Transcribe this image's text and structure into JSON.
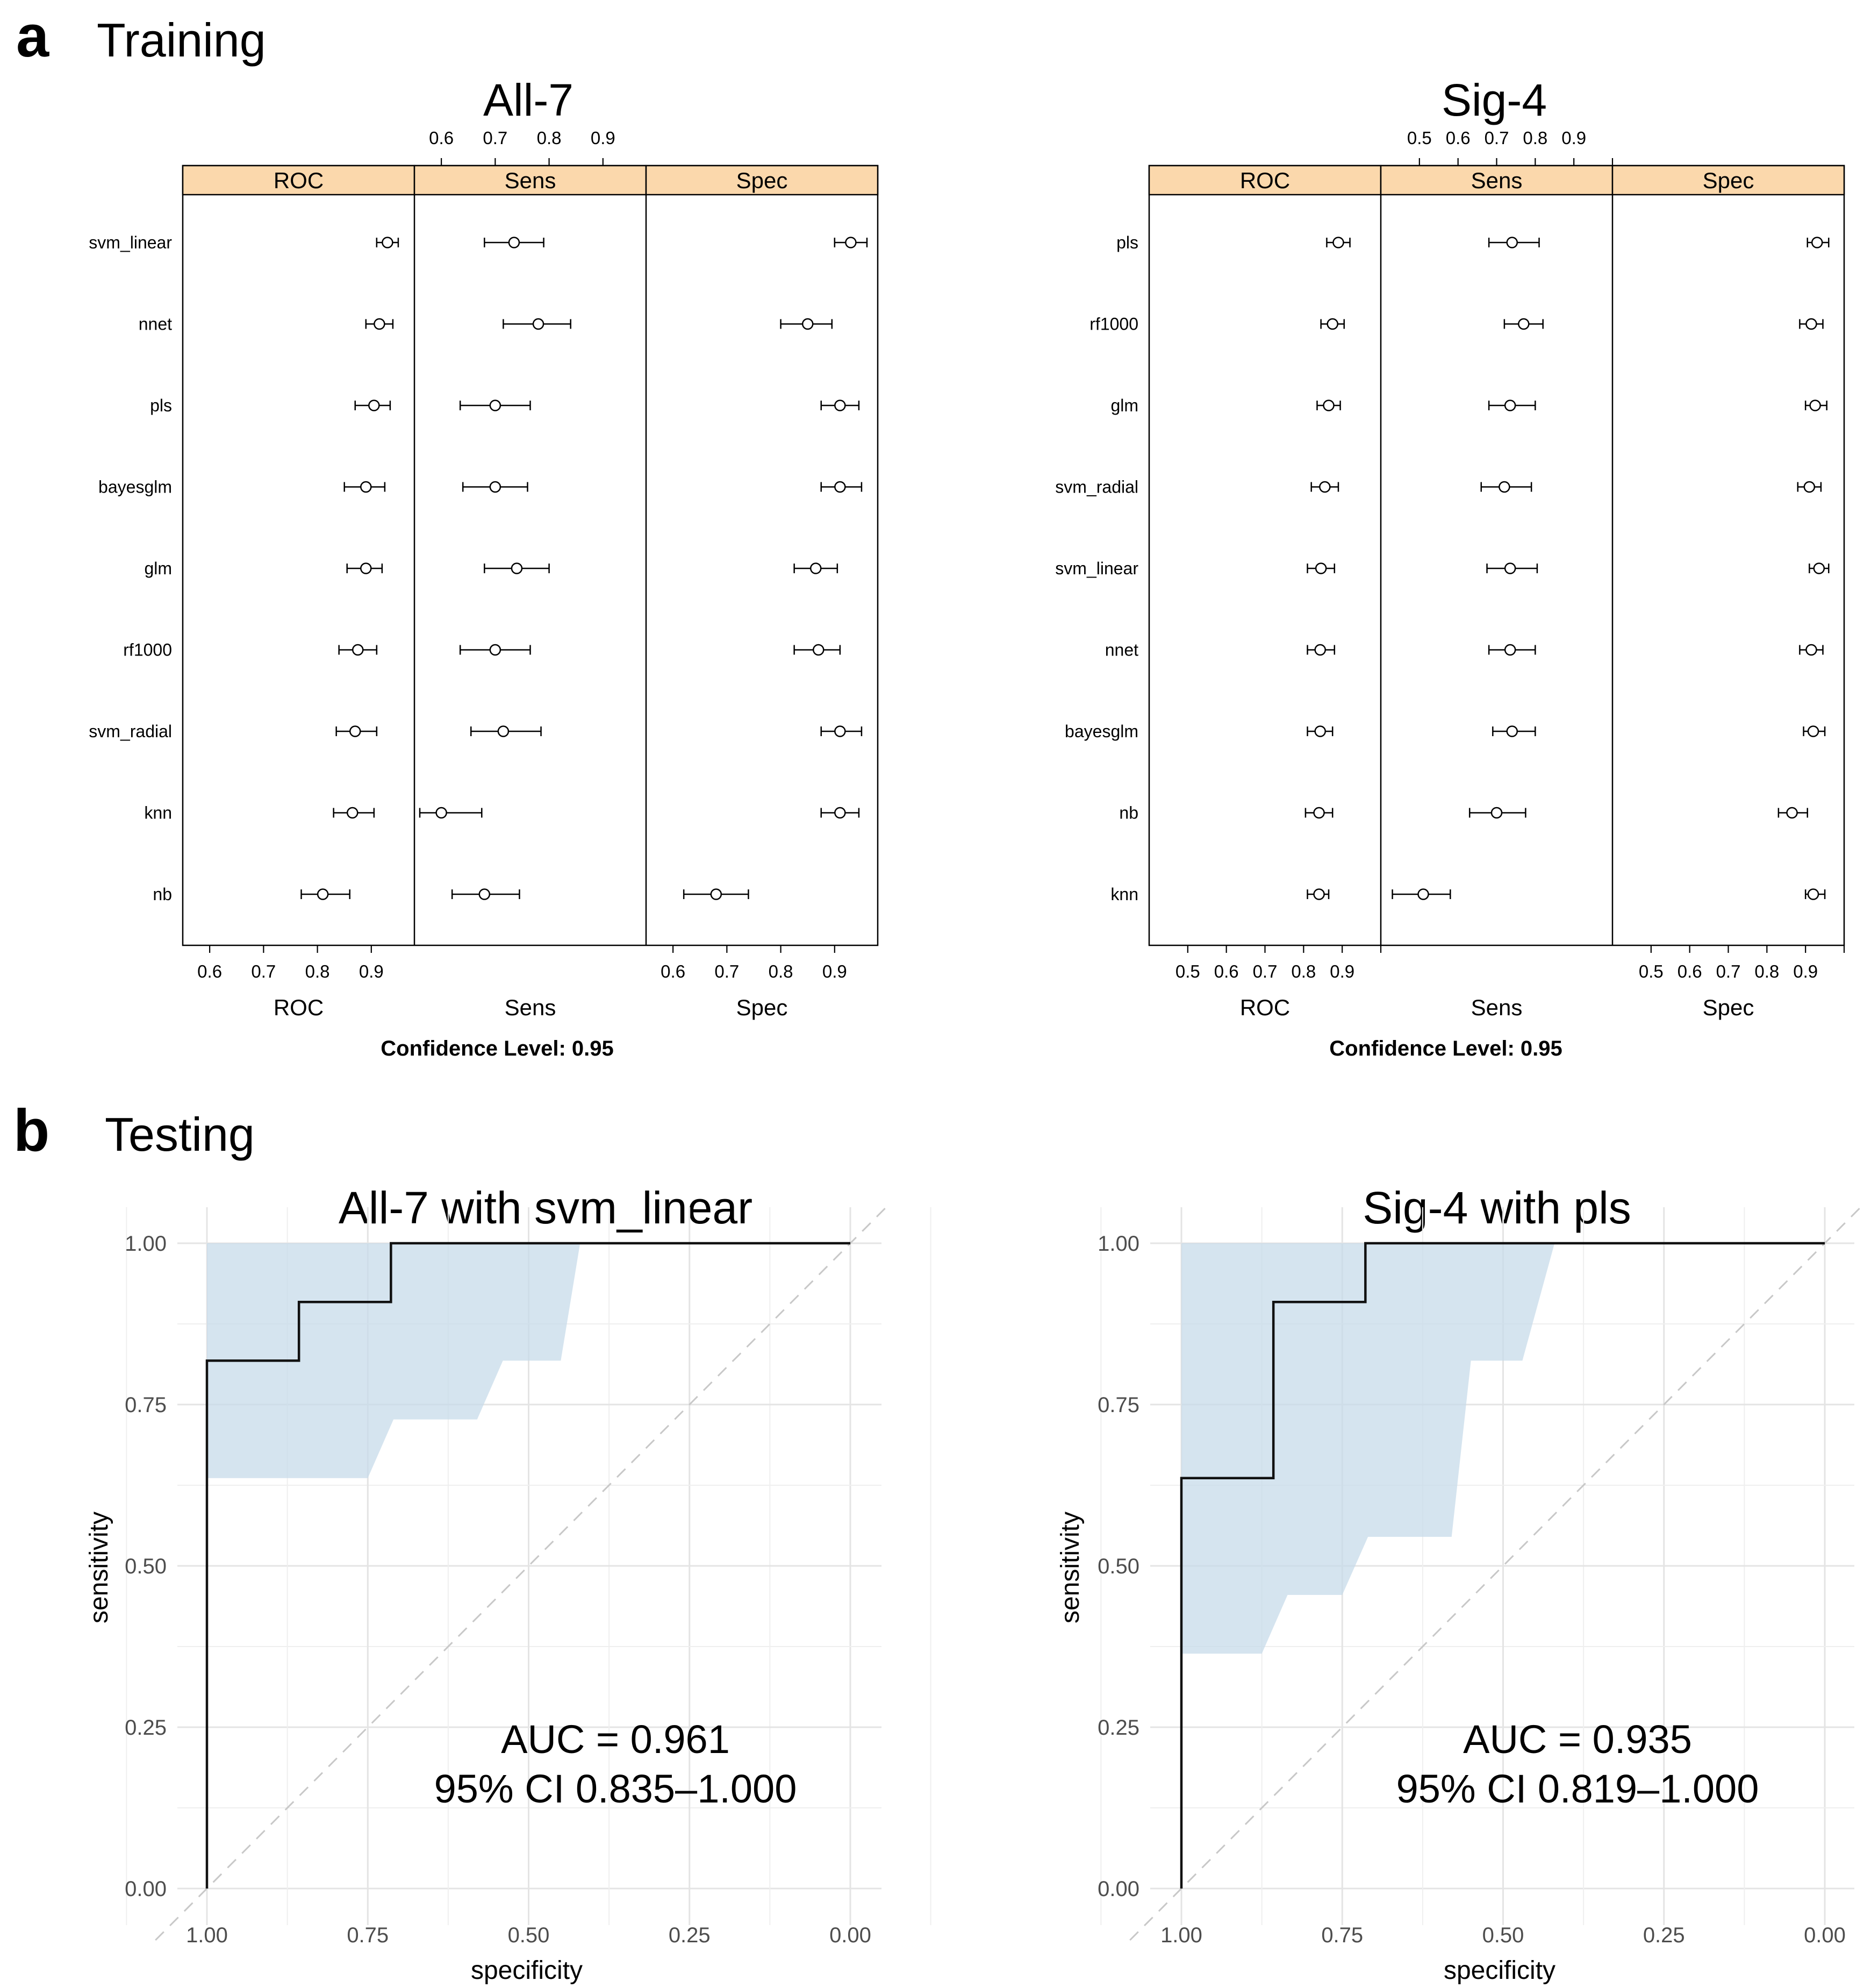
{
  "panel_a": {
    "letter": "a",
    "title": "Training",
    "confidence_label": "Confidence Level: 0.95",
    "strip_color": "#fbd8ac"
  },
  "panel_b": {
    "letter": "b",
    "title": "Testing",
    "ci_fill_color": "#c7dbea"
  },
  "chart_data": [
    {
      "type": "dotplot",
      "title": "All-7",
      "panels": [
        "ROC",
        "Sens",
        "Spec"
      ],
      "xlabels": [
        "ROC",
        "Sens",
        "Spec"
      ],
      "top_ticks": [
        "0.6",
        "0.7",
        "0.8",
        "0.9"
      ],
      "bottom_ticks": [
        "0.6",
        "0.7",
        "0.8",
        "0.9"
      ],
      "xlim": [
        0.55,
        0.98
      ],
      "models": [
        "svm_linear",
        "nnet",
        "pls",
        "bayesglm",
        "glm",
        "rf1000",
        "svm_radial",
        "knn",
        "nb"
      ],
      "values": {
        "ROC": [
          [
            0.91,
            0.93,
            0.95
          ],
          [
            0.89,
            0.915,
            0.94
          ],
          [
            0.87,
            0.905,
            0.935
          ],
          [
            0.85,
            0.89,
            0.925
          ],
          [
            0.855,
            0.89,
            0.92
          ],
          [
            0.84,
            0.875,
            0.91
          ],
          [
            0.835,
            0.87,
            0.91
          ],
          [
            0.83,
            0.865,
            0.905
          ],
          [
            0.77,
            0.81,
            0.86
          ]
        ],
        "Sens": [
          [
            0.68,
            0.735,
            0.79
          ],
          [
            0.715,
            0.78,
            0.84
          ],
          [
            0.635,
            0.7,
            0.765
          ],
          [
            0.64,
            0.7,
            0.76
          ],
          [
            0.68,
            0.74,
            0.8
          ],
          [
            0.635,
            0.7,
            0.765
          ],
          [
            0.655,
            0.715,
            0.785
          ],
          [
            0.56,
            0.6,
            0.675
          ],
          [
            0.62,
            0.68,
            0.745
          ]
        ],
        "Spec": [
          [
            0.9,
            0.93,
            0.96
          ],
          [
            0.8,
            0.85,
            0.895
          ],
          [
            0.875,
            0.91,
            0.945
          ],
          [
            0.875,
            0.91,
            0.95
          ],
          [
            0.825,
            0.865,
            0.905
          ],
          [
            0.825,
            0.87,
            0.91
          ],
          [
            0.875,
            0.91,
            0.95
          ],
          [
            0.875,
            0.91,
            0.945
          ],
          [
            0.62,
            0.68,
            0.74
          ]
        ]
      }
    },
    {
      "type": "dotplot",
      "title": "Sig-4",
      "panels": [
        "ROC",
        "Sens",
        "Spec"
      ],
      "xlabels": [
        "ROC",
        "Sens",
        "Spec"
      ],
      "top_ticks": [
        "0.5",
        "0.6",
        "0.7",
        "0.8",
        "0.9"
      ],
      "bottom_ticks": [
        "0.5",
        "0.6",
        "0.7",
        "0.8",
        "0.9"
      ],
      "xlim": [
        0.4,
        1.0
      ],
      "models": [
        "pls",
        "rf1000",
        "glm",
        "svm_radial",
        "svm_linear",
        "nnet",
        "bayesglm",
        "nb",
        "knn"
      ],
      "values": {
        "ROC": [
          [
            0.86,
            0.89,
            0.92
          ],
          [
            0.845,
            0.875,
            0.905
          ],
          [
            0.835,
            0.865,
            0.895
          ],
          [
            0.82,
            0.855,
            0.89
          ],
          [
            0.81,
            0.845,
            0.88
          ],
          [
            0.81,
            0.843,
            0.88
          ],
          [
            0.81,
            0.843,
            0.875
          ],
          [
            0.805,
            0.84,
            0.875
          ],
          [
            0.81,
            0.84,
            0.865
          ]
        ],
        "Sens": [
          [
            0.68,
            0.74,
            0.81
          ],
          [
            0.72,
            0.77,
            0.82
          ],
          [
            0.68,
            0.735,
            0.8
          ],
          [
            0.66,
            0.72,
            0.79
          ],
          [
            0.675,
            0.735,
            0.805
          ],
          [
            0.68,
            0.735,
            0.8
          ],
          [
            0.69,
            0.74,
            0.8
          ],
          [
            0.63,
            0.7,
            0.775
          ],
          [
            0.43,
            0.51,
            0.58
          ]
        ],
        "Spec": [
          [
            0.905,
            0.93,
            0.96
          ],
          [
            0.885,
            0.915,
            0.945
          ],
          [
            0.9,
            0.925,
            0.955
          ],
          [
            0.88,
            0.91,
            0.94
          ],
          [
            0.91,
            0.935,
            0.96
          ],
          [
            0.885,
            0.915,
            0.945
          ],
          [
            0.895,
            0.92,
            0.95
          ],
          [
            0.83,
            0.865,
            0.905
          ],
          [
            0.9,
            0.92,
            0.95
          ]
        ]
      }
    },
    {
      "type": "roc",
      "title": "All-7 with svm_linear",
      "xlabel": "specificity",
      "ylabel": "sensitivity",
      "xticks": [
        "1.00",
        "0.75",
        "0.50",
        "0.25",
        "0.00"
      ],
      "yticks": [
        "0.00",
        "0.25",
        "0.50",
        "0.75",
        "1.00"
      ],
      "xlim": [
        1.0,
        0.0
      ],
      "ylim": [
        0.0,
        1.0
      ],
      "curve": [
        [
          1.0,
          0.0
        ],
        [
          1.0,
          0.818
        ],
        [
          0.857,
          0.818
        ],
        [
          0.857,
          0.909
        ],
        [
          0.714,
          0.909
        ],
        [
          0.714,
          1.0
        ],
        [
          0.0,
          1.0
        ]
      ],
      "ci_band": [
        [
          1.0,
          0.636
        ],
        [
          0.75,
          0.636
        ],
        [
          0.71,
          0.727
        ],
        [
          0.58,
          0.727
        ],
        [
          0.54,
          0.818
        ],
        [
          0.45,
          0.818
        ],
        [
          0.42,
          1.0
        ],
        [
          1.0,
          1.0
        ]
      ],
      "auc_text": "AUC = 0.961",
      "ci_text": "95% CI 0.835–1.000"
    },
    {
      "type": "roc",
      "title": "Sig-4 with pls",
      "xlabel": "specificity",
      "ylabel": "sensitivity",
      "xticks": [
        "1.00",
        "0.75",
        "0.50",
        "0.25",
        "0.00"
      ],
      "yticks": [
        "0.00",
        "0.25",
        "0.50",
        "0.75",
        "1.00"
      ],
      "xlim": [
        1.0,
        0.0
      ],
      "ylim": [
        0.0,
        1.0
      ],
      "curve": [
        [
          1.0,
          0.0
        ],
        [
          1.0,
          0.636
        ],
        [
          0.857,
          0.636
        ],
        [
          0.857,
          0.909
        ],
        [
          0.714,
          0.909
        ],
        [
          0.714,
          1.0
        ],
        [
          0.0,
          1.0
        ]
      ],
      "ci_band": [
        [
          1.0,
          0.364
        ],
        [
          0.875,
          0.364
        ],
        [
          0.835,
          0.455
        ],
        [
          0.75,
          0.455
        ],
        [
          0.71,
          0.545
        ],
        [
          0.58,
          0.545
        ],
        [
          0.55,
          0.818
        ],
        [
          0.47,
          0.818
        ],
        [
          0.42,
          1.0
        ],
        [
          1.0,
          1.0
        ]
      ],
      "auc_text": "AUC = 0.935",
      "ci_text": "95% CI 0.819–1.000"
    }
  ]
}
